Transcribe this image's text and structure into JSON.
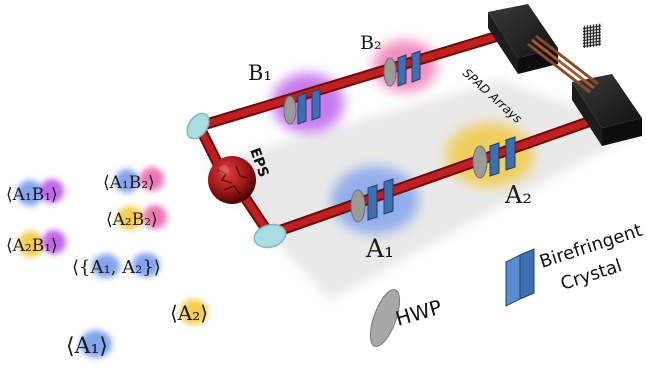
{
  "labels": {
    "b1": "B₁",
    "b2": "B₂",
    "a1": "A₁",
    "a2": "A₂",
    "eps": "EPS",
    "spad": "SPAD Arrays",
    "and": "&",
    "hwp": "HWP",
    "birefringent": "Birefringent",
    "crystal": "Crystal"
  },
  "expectations": [
    {
      "id": "a1b1",
      "text": "⟨A₁B₁⟩"
    },
    {
      "id": "a1b2",
      "text": "⟨A₁B₂⟩"
    },
    {
      "id": "a2b1",
      "text": "⟨A₂B₁⟩"
    },
    {
      "id": "a2b2",
      "text": "⟨A₂B₂⟩"
    },
    {
      "id": "anti",
      "text": "⟨{A₁, A₂}⟩"
    },
    {
      "id": "a1",
      "text": "⟨A₁⟩"
    },
    {
      "id": "a2",
      "text": "⟨A₂⟩"
    }
  ],
  "colors": {
    "beam": "#c01f1f",
    "beam_dark": "#6e0a0a",
    "b_cloud": "#b44ee8",
    "b2_cloud": "#ee5fa8",
    "a_cloud": "#6f95ec",
    "a2_cloud": "#f2c530",
    "crystal": "#3e6fb0",
    "hwp": "#9a9a9a",
    "mirror": "#a9dde3",
    "detector": "#262626"
  }
}
